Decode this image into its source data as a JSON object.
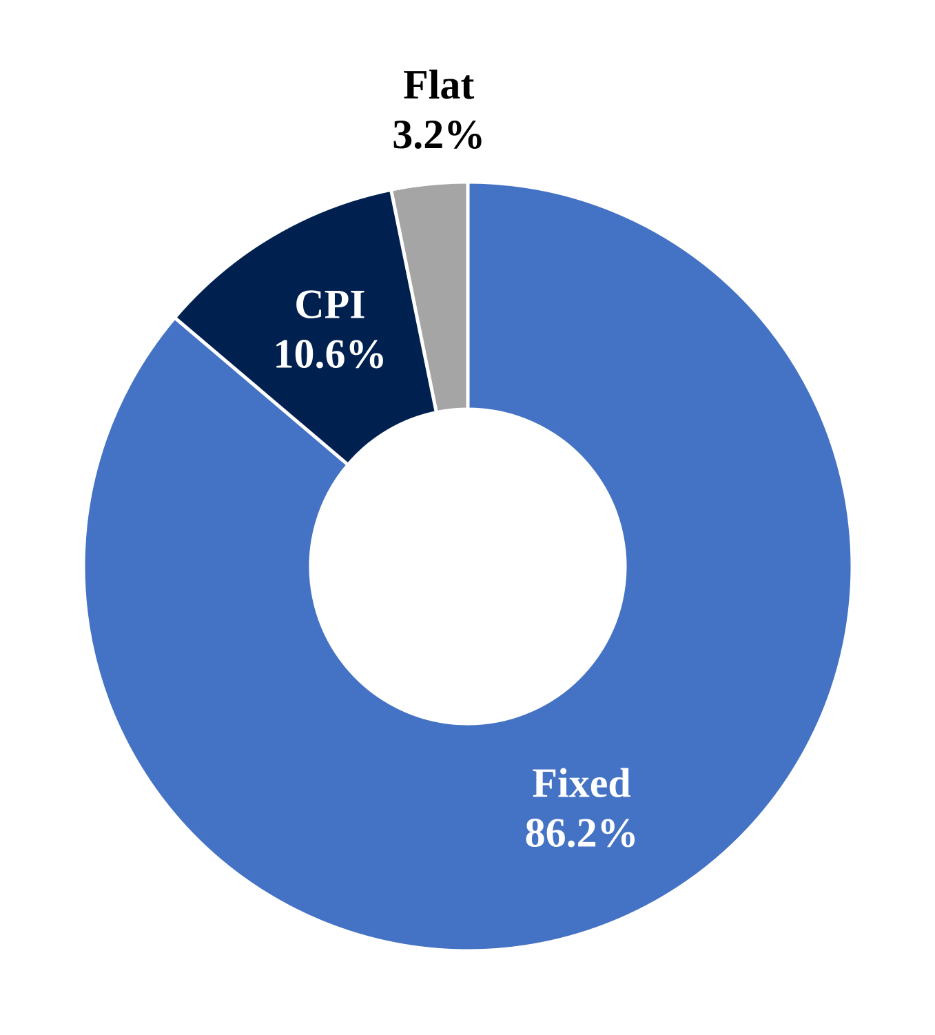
{
  "chart_data": {
    "type": "donut",
    "categories": [
      "Fixed",
      "CPI",
      "Flat"
    ],
    "values": [
      86.2,
      10.6,
      3.2
    ],
    "value_labels": [
      "86.2%",
      "10.6%",
      "3.2%"
    ],
    "colors": [
      "#4472c4",
      "#002050",
      "#a5a5a5"
    ]
  }
}
